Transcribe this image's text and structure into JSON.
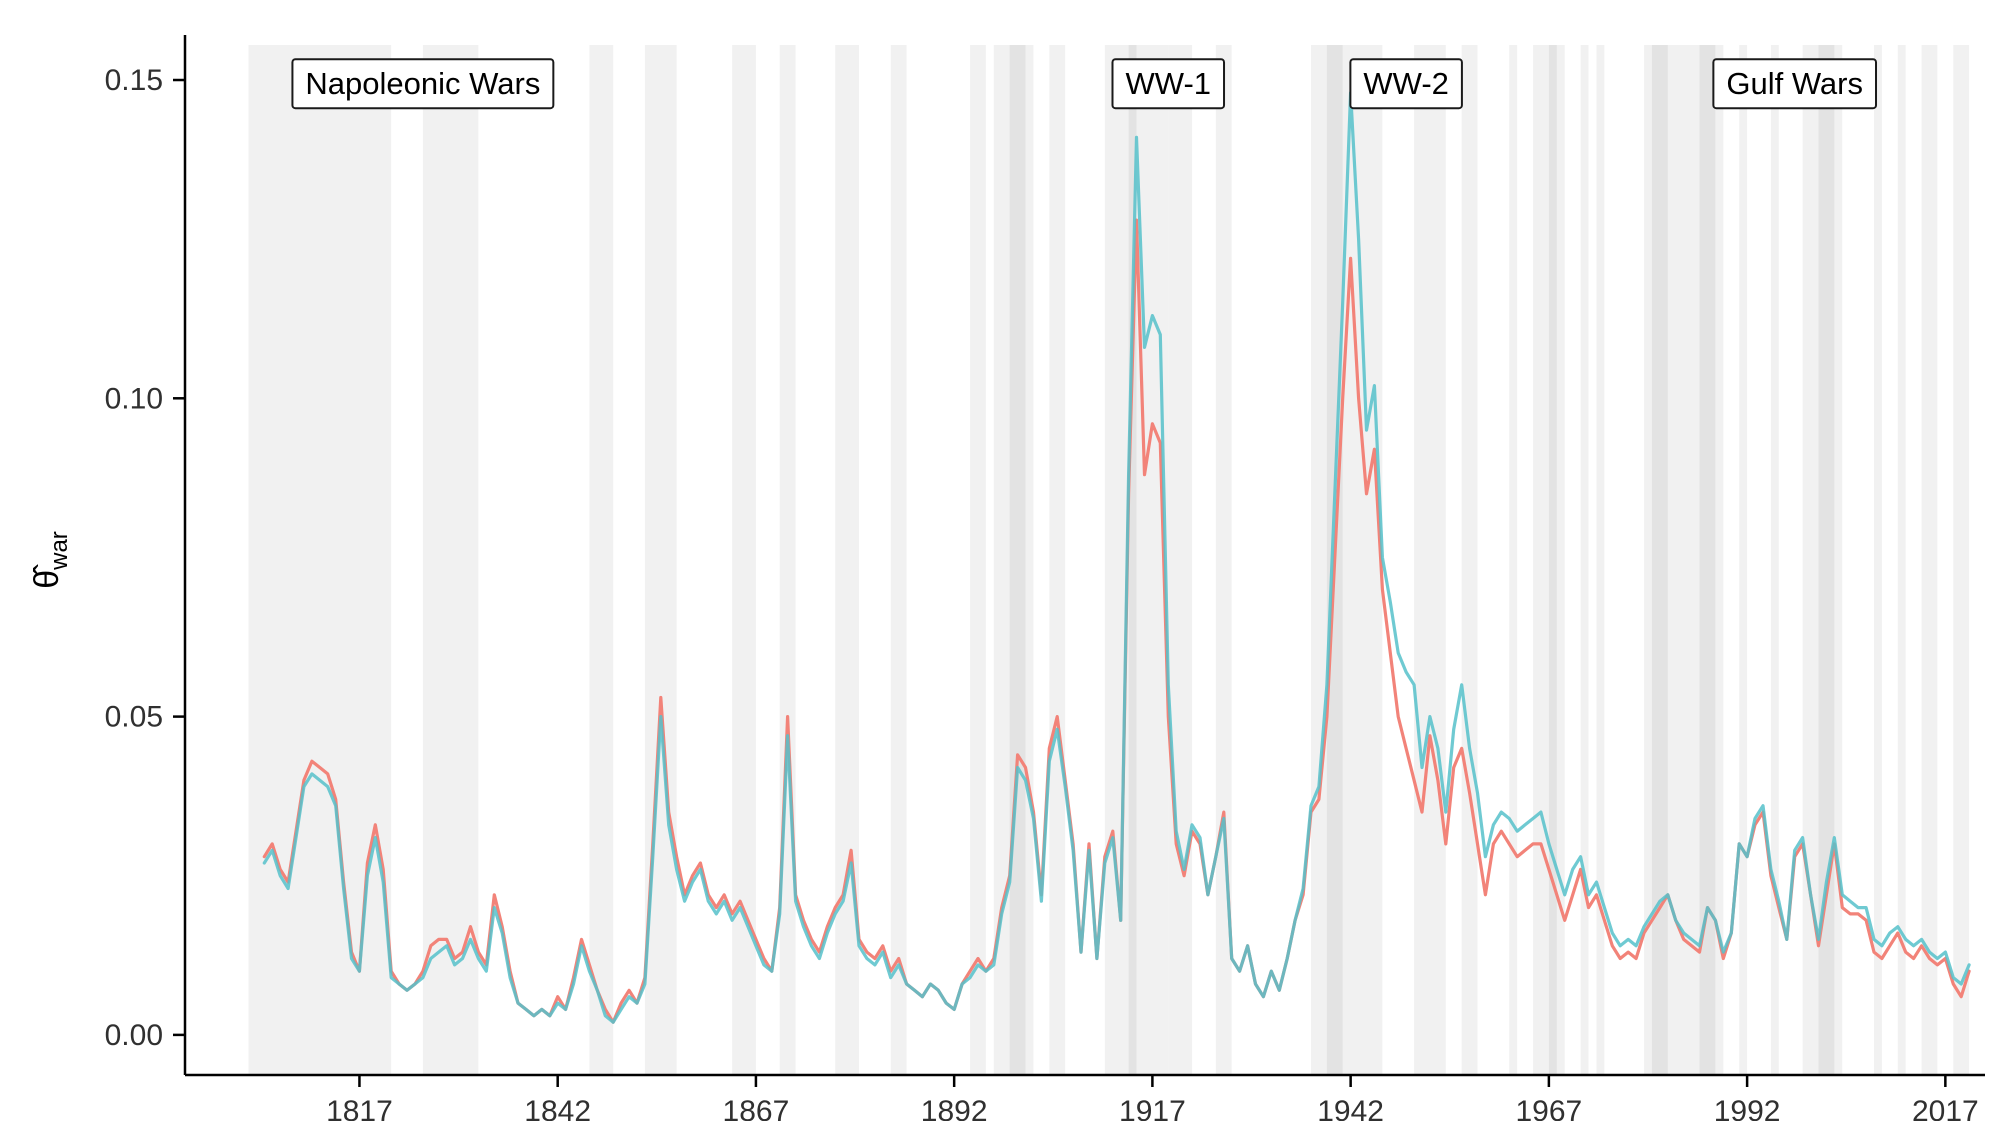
{
  "chart_data": {
    "type": "line",
    "title": "",
    "xlabel": "",
    "ylabel_main": "θ̂",
    "ylabel_sub": "war",
    "legend": "none",
    "grid": "off",
    "xlim": [
      1795,
      2022
    ],
    "ylim": [
      -0.0063,
      0.1555
    ],
    "x_ticks": [
      1817,
      1842,
      1867,
      1892,
      1917,
      1942,
      1967,
      1992,
      2017
    ],
    "y_ticks": [
      {
        "v": 0.0,
        "label": "0.00"
      },
      {
        "v": 0.05,
        "label": "0.05"
      },
      {
        "v": 0.1,
        "label": "0.10"
      },
      {
        "v": 0.15,
        "label": "0.15"
      }
    ],
    "band_color": "rgba(0,0,0,0.055)",
    "years": {
      "start": 1805,
      "end": 2020,
      "step": 1
    },
    "war_bands": [
      [
        1803,
        1821
      ],
      [
        1825,
        1832
      ],
      [
        1846,
        1849
      ],
      [
        1853,
        1857
      ],
      [
        1864,
        1867
      ],
      [
        1870,
        1872
      ],
      [
        1877,
        1880
      ],
      [
        1884,
        1886
      ],
      [
        1894,
        1896
      ],
      [
        1897,
        1902
      ],
      [
        1899,
        1901
      ],
      [
        1904,
        1906
      ],
      [
        1911,
        1915
      ],
      [
        1914,
        1919
      ],
      [
        1919,
        1922
      ],
      [
        1925,
        1927
      ],
      [
        1937,
        1946
      ],
      [
        1939,
        1941
      ],
      [
        1950,
        1954
      ],
      [
        1956,
        1958
      ],
      [
        1962,
        1963
      ],
      [
        1965,
        1968
      ],
      [
        1967,
        1969
      ],
      [
        1971,
        1972
      ],
      [
        1973,
        1974
      ],
      [
        1979,
        1989
      ],
      [
        1980,
        1982
      ],
      [
        1986,
        1988
      ],
      [
        1991,
        1992
      ],
      [
        1995,
        1996
      ],
      [
        1999,
        2004
      ],
      [
        2001,
        2003
      ],
      [
        2008,
        2009
      ],
      [
        2011,
        2012
      ],
      [
        2014,
        2016
      ],
      [
        2018,
        2020
      ]
    ],
    "annotations": [
      {
        "label": "Napoleonic Wars",
        "year": 1825,
        "value": 0.1495
      },
      {
        "label": "WW-1",
        "year": 1919,
        "value": 0.1495
      },
      {
        "label": "WW-2",
        "year": 1949,
        "value": 0.1495
      },
      {
        "label": "Gulf Wars",
        "year": 1998,
        "value": 0.1495
      }
    ],
    "series": [
      {
        "name": "estimate-red",
        "color": "#f28379",
        "opacity": 1.0,
        "values": [
          0.028,
          0.03,
          0.026,
          0.024,
          0.032,
          0.04,
          0.043,
          0.042,
          0.041,
          0.037,
          0.024,
          0.013,
          0.01,
          0.027,
          0.033,
          0.026,
          0.01,
          0.008,
          0.007,
          0.008,
          0.01,
          0.014,
          0.015,
          0.015,
          0.012,
          0.013,
          0.017,
          0.013,
          0.011,
          0.022,
          0.017,
          0.01,
          0.005,
          0.004,
          0.003,
          0.004,
          0.003,
          0.006,
          0.004,
          0.009,
          0.015,
          0.011,
          0.007,
          0.004,
          0.002,
          0.005,
          0.007,
          0.005,
          0.009,
          0.03,
          0.053,
          0.035,
          0.028,
          0.022,
          0.025,
          0.027,
          0.022,
          0.02,
          0.022,
          0.019,
          0.021,
          0.018,
          0.015,
          0.012,
          0.01,
          0.02,
          0.05,
          0.022,
          0.018,
          0.015,
          0.013,
          0.017,
          0.02,
          0.022,
          0.029,
          0.015,
          0.013,
          0.012,
          0.014,
          0.01,
          0.012,
          0.008,
          0.007,
          0.006,
          0.008,
          0.007,
          0.005,
          0.004,
          0.008,
          0.01,
          0.012,
          0.01,
          0.012,
          0.02,
          0.025,
          0.044,
          0.042,
          0.035,
          0.022,
          0.045,
          0.05,
          0.04,
          0.03,
          0.013,
          0.03,
          0.012,
          0.028,
          0.032,
          0.018,
          0.085,
          0.128,
          0.088,
          0.096,
          0.093,
          0.05,
          0.03,
          0.025,
          0.032,
          0.03,
          0.022,
          0.028,
          0.035,
          0.012,
          0.01,
          0.014,
          0.008,
          0.006,
          0.01,
          0.007,
          0.012,
          0.018,
          0.022,
          0.035,
          0.037,
          0.05,
          0.075,
          0.1,
          0.122,
          0.1,
          0.085,
          0.092,
          0.07,
          0.06,
          0.05,
          0.045,
          0.04,
          0.035,
          0.047,
          0.04,
          0.03,
          0.042,
          0.045,
          0.038,
          0.03,
          0.022,
          0.03,
          0.032,
          0.03,
          0.028,
          0.029,
          0.03,
          0.03,
          0.026,
          0.022,
          0.018,
          0.022,
          0.026,
          0.02,
          0.022,
          0.018,
          0.014,
          0.012,
          0.013,
          0.012,
          0.016,
          0.018,
          0.02,
          0.022,
          0.018,
          0.015,
          0.014,
          0.013,
          0.02,
          0.018,
          0.012,
          0.016,
          0.03,
          0.028,
          0.033,
          0.035,
          0.025,
          0.02,
          0.015,
          0.028,
          0.03,
          0.022,
          0.014,
          0.022,
          0.03,
          0.02,
          0.019,
          0.019,
          0.018,
          0.013,
          0.012,
          0.014,
          0.016,
          0.013,
          0.012,
          0.014,
          0.012,
          0.011,
          0.012,
          0.008,
          0.006,
          0.01
        ]
      },
      {
        "name": "estimate-teal",
        "color": "#56c1ca",
        "opacity": 0.85,
        "values": [
          0.027,
          0.029,
          0.025,
          0.023,
          0.031,
          0.039,
          0.041,
          0.04,
          0.039,
          0.036,
          0.023,
          0.012,
          0.01,
          0.025,
          0.031,
          0.024,
          0.009,
          0.008,
          0.007,
          0.008,
          0.009,
          0.012,
          0.013,
          0.014,
          0.011,
          0.012,
          0.015,
          0.012,
          0.01,
          0.02,
          0.016,
          0.009,
          0.005,
          0.004,
          0.003,
          0.004,
          0.003,
          0.005,
          0.004,
          0.008,
          0.014,
          0.01,
          0.007,
          0.003,
          0.002,
          0.004,
          0.006,
          0.005,
          0.008,
          0.028,
          0.05,
          0.033,
          0.026,
          0.021,
          0.024,
          0.026,
          0.021,
          0.019,
          0.021,
          0.018,
          0.02,
          0.017,
          0.014,
          0.011,
          0.01,
          0.019,
          0.047,
          0.021,
          0.017,
          0.014,
          0.012,
          0.016,
          0.019,
          0.021,
          0.027,
          0.014,
          0.012,
          0.011,
          0.013,
          0.009,
          0.011,
          0.008,
          0.007,
          0.006,
          0.008,
          0.007,
          0.005,
          0.004,
          0.008,
          0.009,
          0.011,
          0.01,
          0.011,
          0.019,
          0.024,
          0.042,
          0.04,
          0.034,
          0.021,
          0.043,
          0.048,
          0.039,
          0.029,
          0.013,
          0.029,
          0.012,
          0.027,
          0.031,
          0.018,
          0.088,
          0.141,
          0.108,
          0.113,
          0.11,
          0.055,
          0.032,
          0.026,
          0.033,
          0.031,
          0.022,
          0.028,
          0.034,
          0.012,
          0.01,
          0.014,
          0.008,
          0.006,
          0.01,
          0.007,
          0.012,
          0.018,
          0.023,
          0.036,
          0.039,
          0.055,
          0.085,
          0.115,
          0.148,
          0.125,
          0.095,
          0.102,
          0.075,
          0.068,
          0.06,
          0.057,
          0.055,
          0.042,
          0.05,
          0.045,
          0.035,
          0.048,
          0.055,
          0.045,
          0.038,
          0.028,
          0.033,
          0.035,
          0.034,
          0.032,
          0.033,
          0.034,
          0.035,
          0.03,
          0.026,
          0.022,
          0.026,
          0.028,
          0.022,
          0.024,
          0.02,
          0.016,
          0.014,
          0.015,
          0.014,
          0.017,
          0.019,
          0.021,
          0.022,
          0.018,
          0.016,
          0.015,
          0.014,
          0.02,
          0.018,
          0.013,
          0.016,
          0.03,
          0.028,
          0.034,
          0.036,
          0.026,
          0.021,
          0.015,
          0.029,
          0.031,
          0.022,
          0.015,
          0.024,
          0.031,
          0.022,
          0.021,
          0.02,
          0.02,
          0.015,
          0.014,
          0.016,
          0.017,
          0.015,
          0.014,
          0.015,
          0.013,
          0.012,
          0.013,
          0.009,
          0.008,
          0.011
        ]
      }
    ]
  }
}
